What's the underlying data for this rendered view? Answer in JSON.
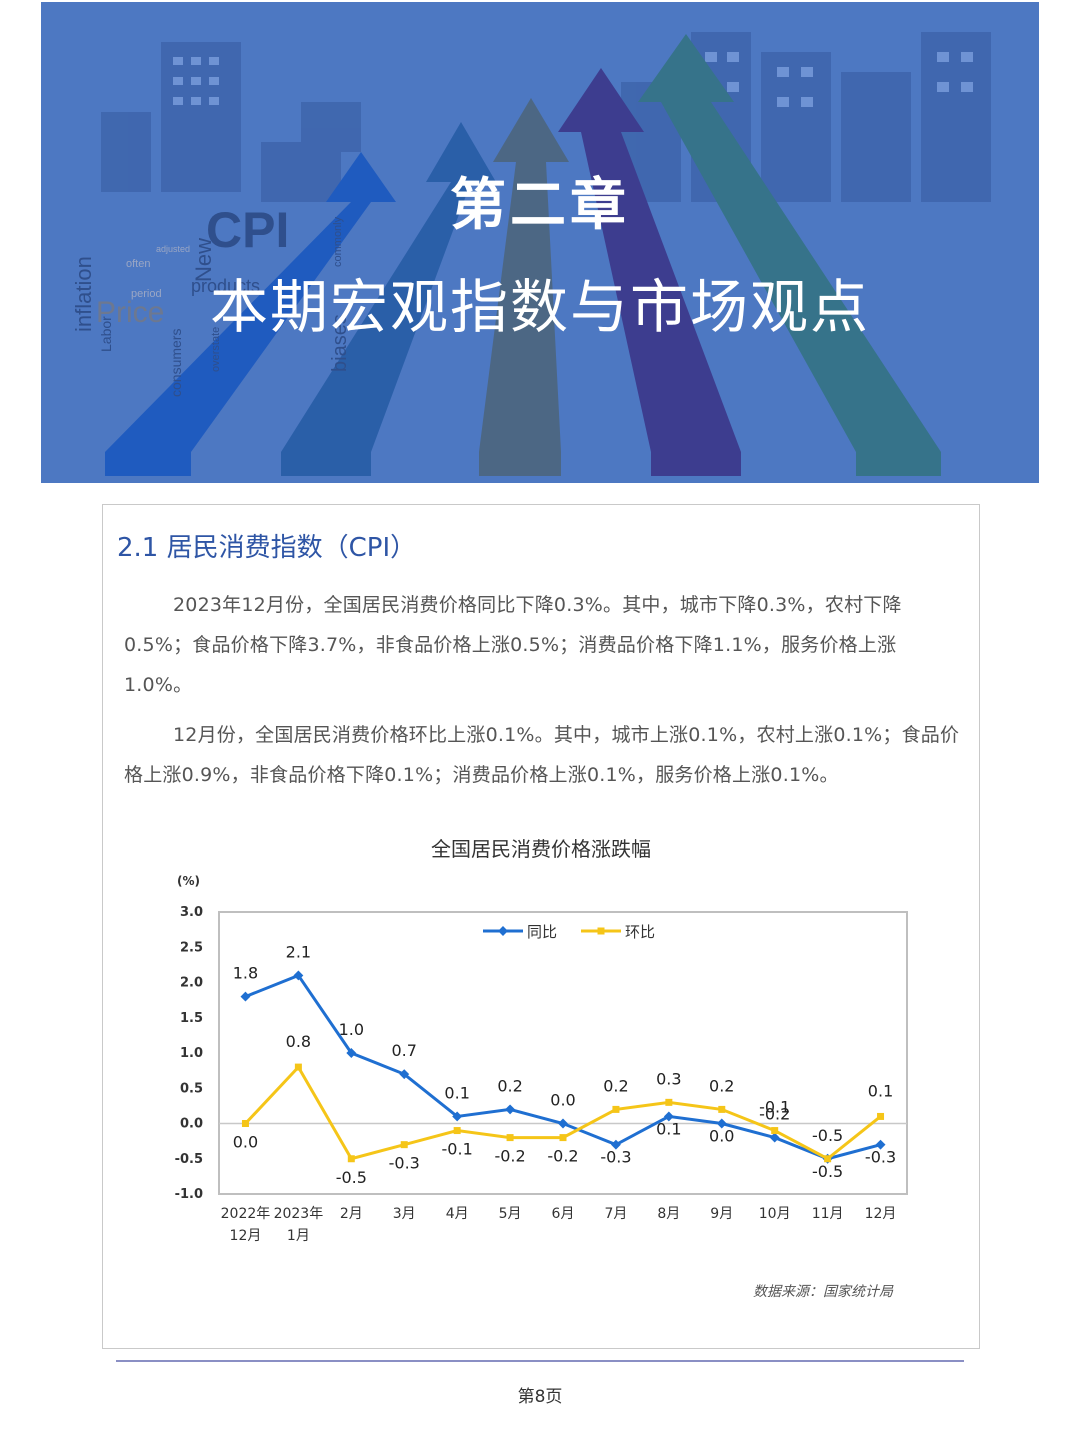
{
  "banner": {
    "chapter_number": "第二章",
    "chapter_title": "本期宏观指数与市场观点",
    "bg_words": [
      "CPI",
      "inflation",
      "Price",
      "period",
      "often",
      "consumers",
      "Labor",
      "biases",
      "New",
      "commonly",
      "adjusted",
      "overstate",
      "products"
    ]
  },
  "section": {
    "heading": "2.1 居民消费指数（CPI）",
    "paragraphs": [
      "2023年12月份，全国居民消费价格同比下降0.3%。其中，城市下降0.3%，农村下降0.5%；食品价格下降3.7%，非食品价格上涨0.5%；消费品价格下降1.1%，服务价格上涨1.0%。",
      "12月份，全国居民消费价格环比上涨0.1%。其中，城市上涨0.1%，农村上涨0.1%；食品价格上涨0.9%，非食品价格下降0.1%；消费品价格上涨0.1%，服务价格上涨0.1%。"
    ]
  },
  "chart_data": {
    "type": "line",
    "title": "全国居民消费价格涨跌幅",
    "ylabel": "(%)",
    "ylim": [
      -1.0,
      3.0
    ],
    "yticks": [
      "3.0",
      "2.5",
      "2.0",
      "1.5",
      "1.0",
      "0.5",
      "0.0",
      "-0.5",
      "-1.0"
    ],
    "categories": [
      [
        "2022年",
        "12月"
      ],
      [
        "2023年",
        "1月"
      ],
      [
        "2月"
      ],
      [
        "3月"
      ],
      [
        "4月"
      ],
      [
        "5月"
      ],
      [
        "6月"
      ],
      [
        "7月"
      ],
      [
        "8月"
      ],
      [
        "9月"
      ],
      [
        "10月"
      ],
      [
        "11月"
      ],
      [
        "12月"
      ]
    ],
    "series": [
      {
        "name": "同比",
        "color": "#1f6fd1",
        "values": [
          1.8,
          2.1,
          1.0,
          0.7,
          0.1,
          0.2,
          0.0,
          -0.3,
          0.1,
          0.0,
          -0.2,
          -0.5,
          -0.3
        ]
      },
      {
        "name": "环比",
        "color": "#f5c518",
        "values": [
          0.0,
          0.8,
          -0.5,
          -0.3,
          -0.1,
          -0.2,
          -0.2,
          0.2,
          0.3,
          0.2,
          -0.1,
          -0.5,
          0.1
        ]
      }
    ],
    "legend": "top-center",
    "grid": false
  },
  "source": "数据来源：国家统计局",
  "footer": {
    "page": "第8页"
  }
}
